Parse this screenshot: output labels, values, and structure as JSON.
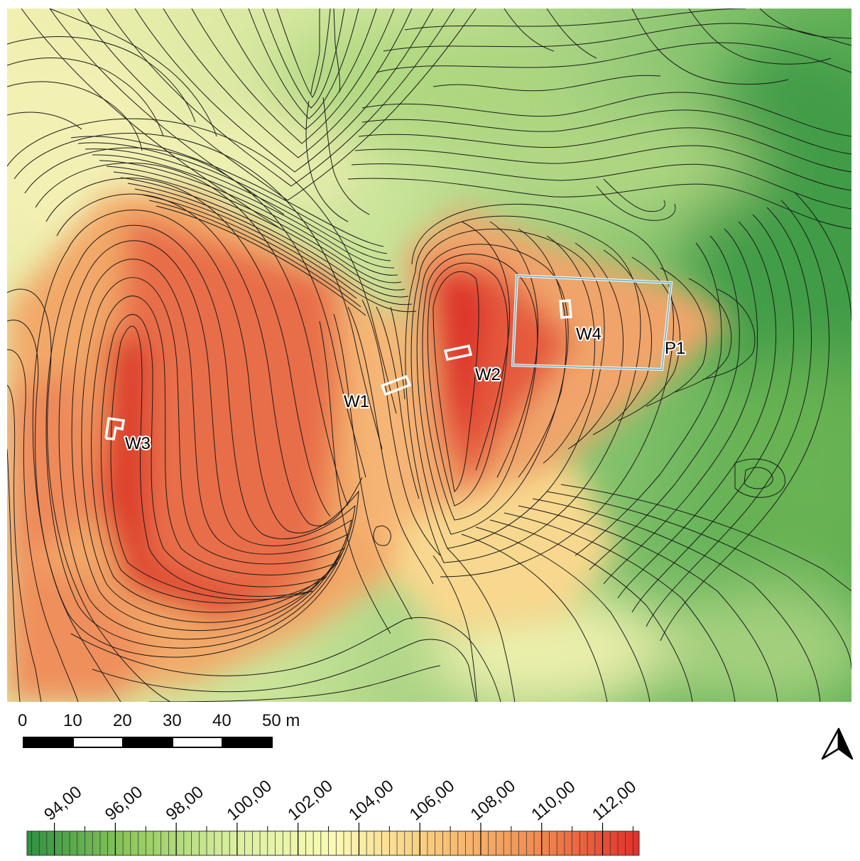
{
  "map": {
    "features": [
      {
        "id": "W1",
        "label": "W1"
      },
      {
        "id": "W2",
        "label": "W2"
      },
      {
        "id": "W3",
        "label": "W3"
      },
      {
        "id": "W4",
        "label": "W4"
      },
      {
        "id": "P1",
        "label": "P1"
      }
    ],
    "colors": {
      "low": "#2e9142",
      "mid": "#fafab4",
      "high": "#e0302a",
      "contour": "#1a1a1a",
      "plot_outline": "#7fb8c8",
      "trench_outline": "#ffffff"
    }
  },
  "scale_bar": {
    "ticks": [
      "0",
      "10",
      "20",
      "30",
      "40",
      "50 m"
    ],
    "pattern": [
      "black",
      "white",
      "black",
      "white",
      "black"
    ]
  },
  "north_arrow": {
    "icon": "north-arrow-icon"
  },
  "legend": {
    "labels": [
      "94,00",
      "96,00",
      "98,00",
      "100,00",
      "102,00",
      "104,00",
      "106,00",
      "108,00",
      "110,00",
      "112,00"
    ],
    "range": [
      93.1,
      113.2
    ],
    "color_stops": [
      "#2e9142",
      "#8fc85a",
      "#d9eea0",
      "#fafab4",
      "#f9c87a",
      "#f08c50",
      "#e0302a"
    ]
  }
}
